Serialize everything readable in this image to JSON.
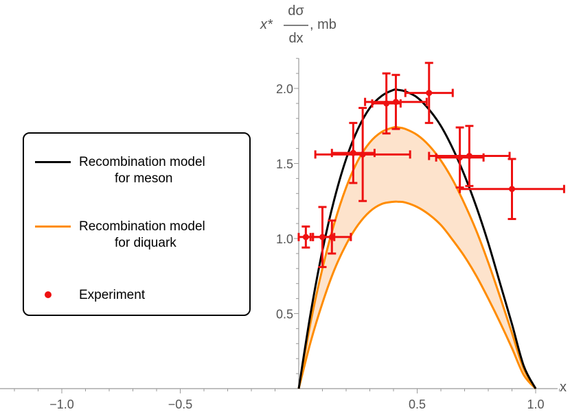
{
  "chart_data": {
    "type": "line",
    "title": "",
    "xlabel": "x",
    "ylabel_parts": {
      "prefix": "x*",
      "numerator": "dσ",
      "denominator": "dx",
      "suffix": ", mb"
    },
    "xlim": [
      -1.22,
      1.12
    ],
    "ylim": [
      0,
      2.22
    ],
    "x_ticks": [
      -1.0,
      -0.5,
      0.5,
      1.0
    ],
    "x_tick_labels": [
      "−1.0",
      "−0.5",
      "0.5",
      "1.0"
    ],
    "y_ticks": [
      0.5,
      1.0,
      1.5,
      2.0
    ],
    "y_tick_labels": [
      "0.5",
      "1.0",
      "1.5",
      "2.0"
    ],
    "grid": false,
    "legend_placement": "left",
    "colors": {
      "meson": "#000000",
      "diquark": "#ff8c00",
      "band_fill": "#fde3cc",
      "experiment": "#ee1111"
    },
    "series": [
      {
        "name_line1": "Recombination model",
        "name_line2": "for meson",
        "kind": "curve",
        "x": [
          0.0,
          0.05,
          0.1,
          0.15,
          0.2,
          0.25,
          0.3,
          0.35,
          0.4,
          0.42,
          0.45,
          0.5,
          0.55,
          0.6,
          0.65,
          0.7,
          0.75,
          0.8,
          0.85,
          0.9,
          0.95,
          1.0
        ],
        "y": [
          0.0,
          0.5,
          0.92,
          1.26,
          1.53,
          1.73,
          1.87,
          1.95,
          1.99,
          1.99,
          1.98,
          1.94,
          1.86,
          1.75,
          1.6,
          1.42,
          1.21,
          0.97,
          0.7,
          0.43,
          0.15,
          0.0
        ]
      },
      {
        "name_line1": "Recombination model",
        "name_line2": "for diquark",
        "kind": "band",
        "x": [
          0.0,
          0.05,
          0.1,
          0.15,
          0.2,
          0.25,
          0.3,
          0.35,
          0.4,
          0.42,
          0.45,
          0.5,
          0.55,
          0.6,
          0.65,
          0.7,
          0.75,
          0.8,
          0.85,
          0.9,
          0.95,
          1.0
        ],
        "upper": [
          0.0,
          0.44,
          0.8,
          1.1,
          1.34,
          1.52,
          1.64,
          1.71,
          1.74,
          1.74,
          1.73,
          1.69,
          1.62,
          1.52,
          1.39,
          1.23,
          1.05,
          0.84,
          0.61,
          0.37,
          0.13,
          0.0
        ],
        "lower": [
          0.0,
          0.31,
          0.57,
          0.79,
          0.96,
          1.09,
          1.18,
          1.23,
          1.245,
          1.245,
          1.24,
          1.21,
          1.16,
          1.09,
          0.99,
          0.88,
          0.75,
          0.6,
          0.44,
          0.27,
          0.09,
          0.0
        ]
      },
      {
        "name_line1": "Experiment",
        "name_line2": "",
        "kind": "points",
        "points": [
          {
            "x": 0.03,
            "y": 1.01,
            "xerr": 0.03,
            "yerr": 0.07
          },
          {
            "x": 0.1,
            "y": 1.01,
            "xerr": 0.05,
            "yerr": 0.2
          },
          {
            "x": 0.14,
            "y": 1.01,
            "xerr": 0.08,
            "yerr": 0.11
          },
          {
            "x": 0.23,
            "y": 1.57,
            "xerr": 0.09,
            "yerr": 0.2
          },
          {
            "x": 0.27,
            "y": 1.56,
            "xerr": 0.2,
            "yerr": 0.31
          },
          {
            "x": 0.37,
            "y": 1.9,
            "xerr": 0.06,
            "yerr": 0.2
          },
          {
            "x": 0.41,
            "y": 1.91,
            "xerr": 0.13,
            "yerr": 0.18
          },
          {
            "x": 0.55,
            "y": 1.97,
            "xerr": 0.1,
            "yerr": 0.2
          },
          {
            "x": 0.68,
            "y": 1.54,
            "xerr": 0.1,
            "yerr": 0.2
          },
          {
            "x": 0.72,
            "y": 1.55,
            "xerr": 0.17,
            "yerr": 0.2
          },
          {
            "x": 0.9,
            "y": 1.33,
            "xerr": 0.22,
            "yerr": 0.2
          }
        ]
      }
    ]
  }
}
